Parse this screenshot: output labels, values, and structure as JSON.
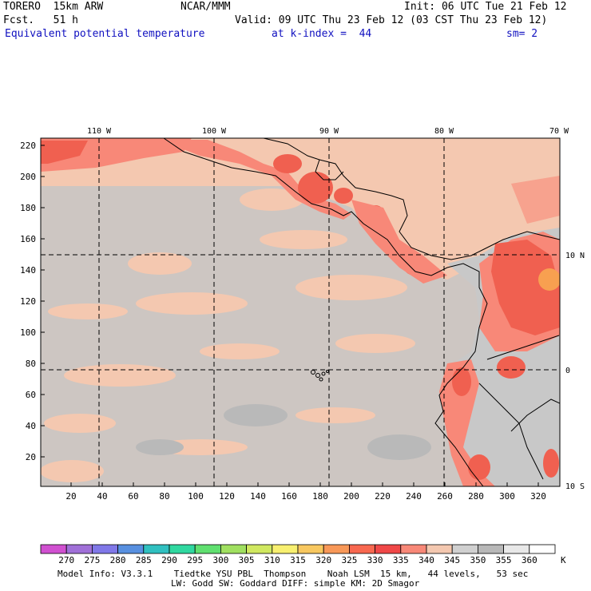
{
  "header": {
    "model": "TORERO  15km ARW",
    "center": "NCAR/MMM",
    "init": "Init: 06 UTC Tue 21 Feb 12",
    "fcst": "Fcst.   51 h",
    "valid": "Valid: 09 UTC Thu 23 Feb 12 (03 CST Thu 23 Feb 12)",
    "field": "Equivalent potential temperature",
    "level": "at k-index =  44",
    "smooth": "sm= 2"
  },
  "map": {
    "lon_labels": [
      "110 W",
      "100 W",
      "90 W",
      "80 W",
      "70 W"
    ],
    "lat_labels": [
      "10 N",
      "0",
      "10 S"
    ],
    "y_ticks": [
      "220",
      "200",
      "180",
      "160",
      "140",
      "120",
      "100",
      "80",
      "60",
      "40",
      "20"
    ],
    "x_ticks": [
      "20",
      "40",
      "60",
      "80",
      "100",
      "120",
      "140",
      "160",
      "180",
      "200",
      "220",
      "240",
      "260",
      "280",
      "300",
      "320"
    ]
  },
  "colorbar": {
    "labels": [
      "270",
      "275",
      "280",
      "285",
      "290",
      "295",
      "300",
      "305",
      "310",
      "315",
      "320",
      "325",
      "330",
      "335",
      "340",
      "345",
      "350",
      "355",
      "360"
    ],
    "unit": "K",
    "colors": [
      "#d050d0",
      "#a070d8",
      "#8078e8",
      "#5890e0",
      "#30c0c0",
      "#30d8a0",
      "#60e070",
      "#a0e060",
      "#d0e860",
      "#f8f070",
      "#f8c860",
      "#f89858",
      "#f86850",
      "#f04848",
      "#f88878",
      "#f4c8b0",
      "#d0d0d0",
      "#b8b8b8",
      "#e8e8e8",
      "#ffffff"
    ]
  },
  "footer": {
    "line1": "Model Info: V3.3.1    Tiedtke YSU PBL  Thompson    Noah LSM  15 km,   44 levels,   53 sec",
    "line2": "LW: Godd SW: Goddard DIFF: simple KM: 2D Smagor"
  }
}
